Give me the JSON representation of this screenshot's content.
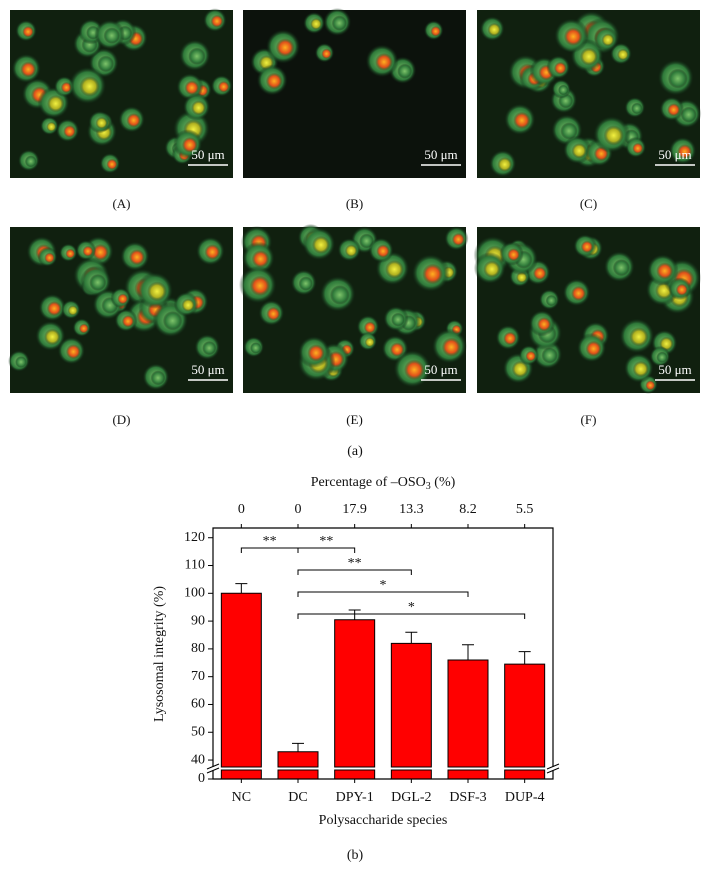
{
  "figure_a": {
    "panels": [
      {
        "label": "(A)"
      },
      {
        "label": "(B)"
      },
      {
        "label": "(C)"
      },
      {
        "label": "(D)"
      },
      {
        "label": "(E)"
      },
      {
        "label": "(F)"
      }
    ],
    "scale_bar": "50 μm",
    "caption": "(a)"
  },
  "chart_data": {
    "type": "bar",
    "categories": [
      "NC",
      "DC",
      "DPY-1",
      "DGL-2",
      "DSF-3",
      "DUP-4"
    ],
    "values": [
      100,
      43,
      90.5,
      82,
      76,
      74.5
    ],
    "errors": [
      3.5,
      3,
      3.5,
      4,
      5.5,
      4.5
    ],
    "color": "#ff0000",
    "y_label": "Lysosomal integrity (%)",
    "x_label": "Polysaccharide species",
    "top_axis_label": [
      "Percentage of –OSO",
      "3",
      " (%)"
    ],
    "top_values": [
      0,
      0,
      17.9,
      13.3,
      8.2,
      5.5
    ],
    "ylim": [
      0,
      123.5
    ],
    "axis_break": [
      3.5,
      37.5
    ],
    "yticks": [
      0,
      40,
      50,
      60,
      70,
      80,
      90,
      100,
      110,
      120
    ],
    "significance": [
      {
        "from": 0,
        "to": 1,
        "label": "**"
      },
      {
        "from": 1,
        "to": 2,
        "label": "**"
      },
      {
        "from": 1,
        "to": 3,
        "label": "**"
      },
      {
        "from": 1,
        "to": 4,
        "label": "*"
      },
      {
        "from": 1,
        "to": 5,
        "label": "*"
      }
    ],
    "caption": "(b)"
  }
}
